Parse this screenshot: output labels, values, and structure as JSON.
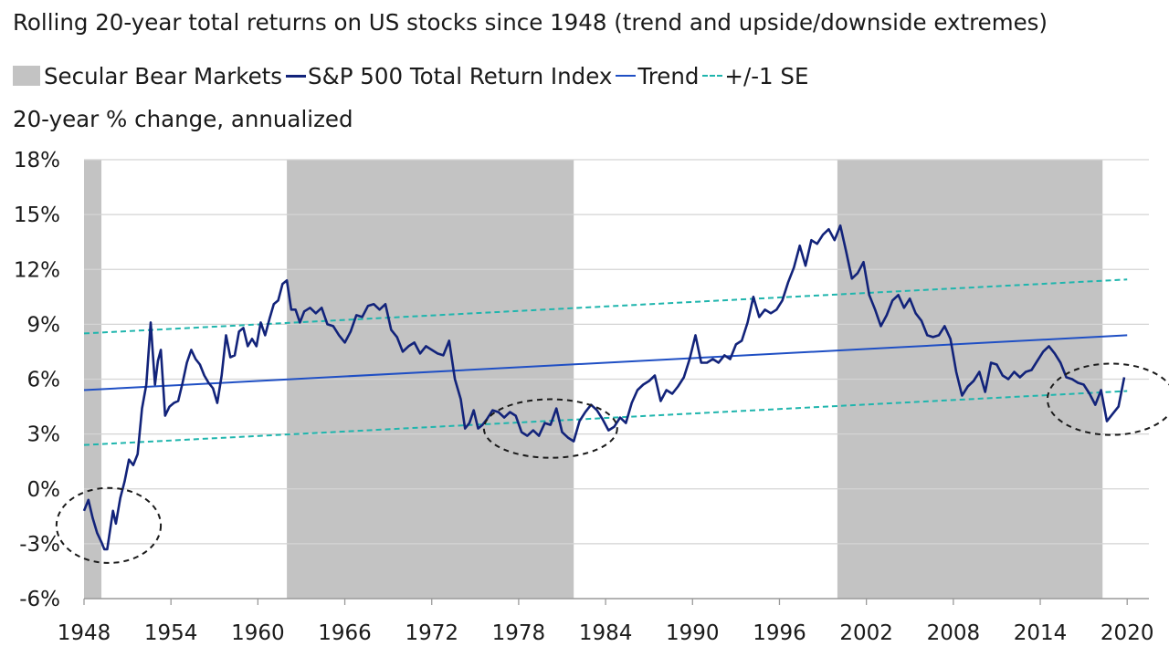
{
  "chart_data": {
    "type": "line",
    "title": "Rolling 20-year total returns on US stocks since 1948 (trend and upside/downside extremes)",
    "ylabel": "20-year % change, annualized",
    "xlabel": "",
    "xlim": [
      1948,
      2021.5
    ],
    "ylim": [
      -6,
      18
    ],
    "x_ticks": [
      "1948",
      "1954",
      "1960",
      "1966",
      "1972",
      "1978",
      "1984",
      "1990",
      "1996",
      "2002",
      "2008",
      "2014",
      "2020"
    ],
    "x_tick_values": [
      1948,
      1954,
      1960,
      1966,
      1972,
      1978,
      1984,
      1990,
      1996,
      2002,
      2008,
      2014,
      2020
    ],
    "y_ticks": [
      "18%",
      "15%",
      "12%",
      "9%",
      "6%",
      "3%",
      "0%",
      "-3%",
      "-6%"
    ],
    "y_tick_values": [
      18,
      15,
      12,
      9,
      6,
      3,
      0,
      -3,
      -6
    ],
    "grid": "horizontal",
    "legend_position": "top",
    "legend": {
      "bear": "Secular Bear Markets",
      "sp": "S&P 500 Total Return Index",
      "trend": "Trend",
      "se": "+/-1 SE"
    },
    "bear_markets": [
      [
        1948,
        1949.2
      ],
      [
        1962,
        1981.8
      ],
      [
        2000,
        2018.3
      ]
    ],
    "trend": {
      "x": [
        1948,
        2020
      ],
      "y": [
        5.4,
        8.4
      ]
    },
    "upper_se": {
      "x": [
        1948,
        2020
      ],
      "y": [
        8.5,
        11.45
      ]
    },
    "lower_se": {
      "x": [
        1948,
        2020
      ],
      "y": [
        2.4,
        5.35
      ]
    },
    "sp500": {
      "x": [
        1948.0,
        1948.3,
        1948.6,
        1948.9,
        1949.2,
        1949.4,
        1949.6,
        1950.0,
        1950.2,
        1950.5,
        1950.8,
        1951.1,
        1951.4,
        1951.7,
        1952.0,
        1952.3,
        1952.6,
        1952.9,
        1953.1,
        1953.3,
        1953.6,
        1953.9,
        1954.2,
        1954.5,
        1954.8,
        1955.1,
        1955.4,
        1955.7,
        1956.0,
        1956.3,
        1956.6,
        1956.9,
        1957.2,
        1957.5,
        1957.8,
        1958.1,
        1958.4,
        1958.7,
        1959.0,
        1959.3,
        1959.6,
        1959.9,
        1960.2,
        1960.5,
        1960.8,
        1961.1,
        1961.4,
        1961.7,
        1962.0,
        1962.3,
        1962.6,
        1962.9,
        1963.2,
        1963.6,
        1964.0,
        1964.4,
        1964.8,
        1965.2,
        1965.6,
        1966.0,
        1966.4,
        1966.8,
        1967.2,
        1967.6,
        1968.0,
        1968.4,
        1968.8,
        1969.2,
        1969.6,
        1970.0,
        1970.4,
        1970.8,
        1971.2,
        1971.6,
        1972.0,
        1972.4,
        1972.8,
        1973.2,
        1973.6,
        1974.0,
        1974.3,
        1974.6,
        1974.9,
        1975.2,
        1975.5,
        1975.8,
        1976.2,
        1976.6,
        1977.0,
        1977.4,
        1977.8,
        1978.2,
        1978.6,
        1979.0,
        1979.4,
        1979.8,
        1980.2,
        1980.6,
        1981.0,
        1981.4,
        1981.8,
        1982.2,
        1982.6,
        1983.0,
        1983.4,
        1983.8,
        1984.2,
        1984.6,
        1985.0,
        1985.4,
        1985.8,
        1986.2,
        1986.6,
        1987.0,
        1987.4,
        1987.8,
        1988.2,
        1988.6,
        1989.0,
        1989.4,
        1989.8,
        1990.2,
        1990.6,
        1991.0,
        1991.4,
        1991.8,
        1992.2,
        1992.6,
        1993.0,
        1993.4,
        1993.8,
        1994.2,
        1994.6,
        1995.0,
        1995.4,
        1995.8,
        1996.2,
        1996.6,
        1997.0,
        1997.4,
        1997.8,
        1998.2,
        1998.6,
        1999.0,
        1999.4,
        1999.8,
        2000.2,
        2000.6,
        2001.0,
        2001.4,
        2001.8,
        2002.2,
        2002.6,
        2003.0,
        2003.4,
        2003.8,
        2004.2,
        2004.6,
        2005.0,
        2005.4,
        2005.8,
        2006.2,
        2006.6,
        2007.0,
        2007.4,
        2007.8,
        2008.2,
        2008.6,
        2009.0,
        2009.4,
        2009.8,
        2010.2,
        2010.6,
        2011.0,
        2011.4,
        2011.8,
        2012.2,
        2012.6,
        2013.0,
        2013.4,
        2013.8,
        2014.2,
        2014.6,
        2015.0,
        2015.4,
        2015.8,
        2016.2,
        2016.6,
        2017.0,
        2017.4,
        2017.8,
        2018.2,
        2018.6,
        2019.0,
        2019.4,
        2019.8
      ],
      "y": [
        -1.2,
        -0.6,
        -1.6,
        -2.4,
        -2.9,
        -3.3,
        -3.3,
        -1.2,
        -1.9,
        -0.5,
        0.4,
        1.6,
        1.3,
        1.9,
        4.4,
        5.7,
        9.1,
        5.7,
        7.0,
        7.6,
        4.0,
        4.5,
        4.7,
        4.8,
        5.8,
        6.9,
        7.6,
        7.1,
        6.8,
        6.2,
        5.8,
        5.5,
        4.7,
        6.2,
        8.4,
        7.2,
        7.3,
        8.6,
        8.8,
        7.8,
        8.2,
        7.8,
        9.1,
        8.4,
        9.3,
        10.1,
        10.3,
        11.2,
        11.4,
        9.8,
        9.8,
        9.1,
        9.7,
        9.9,
        9.6,
        9.9,
        9.0,
        8.9,
        8.4,
        8.0,
        8.6,
        9.5,
        9.4,
        10.0,
        10.1,
        9.8,
        10.1,
        8.7,
        8.3,
        7.5,
        7.8,
        8.0,
        7.4,
        7.8,
        7.6,
        7.4,
        7.3,
        8.1,
        6.0,
        4.9,
        3.3,
        3.6,
        4.3,
        3.3,
        3.5,
        3.8,
        4.3,
        4.2,
        3.9,
        4.2,
        4.0,
        3.1,
        2.9,
        3.2,
        2.9,
        3.6,
        3.5,
        4.4,
        3.1,
        2.8,
        2.6,
        3.7,
        4.2,
        4.6,
        4.3,
        3.8,
        3.2,
        3.4,
        3.9,
        3.6,
        4.7,
        5.4,
        5.7,
        5.9,
        6.2,
        4.8,
        5.4,
        5.2,
        5.6,
        6.1,
        7.1,
        8.4,
        6.9,
        6.9,
        7.1,
        6.9,
        7.3,
        7.1,
        7.9,
        8.1,
        9.1,
        10.5,
        9.4,
        9.8,
        9.6,
        9.8,
        10.3,
        11.3,
        12.1,
        13.3,
        12.2,
        13.6,
        13.4,
        13.9,
        14.2,
        13.6,
        14.4,
        13.0,
        11.5,
        11.8,
        12.4,
        10.6,
        9.8,
        8.9,
        9.5,
        10.3,
        10.6,
        9.9,
        10.4,
        9.6,
        9.2,
        8.4,
        8.3,
        8.4,
        8.9,
        8.2,
        6.4,
        5.1,
        5.6,
        5.9,
        6.4,
        5.3,
        6.9,
        6.8,
        6.2,
        6.0,
        6.4,
        6.1,
        6.4,
        6.5,
        7.0,
        7.5,
        7.8,
        7.4,
        6.9,
        6.1,
        6.0,
        5.8,
        5.7,
        5.2,
        4.6,
        5.4,
        3.7,
        4.1,
        4.5,
        6.1
      ]
    },
    "circles": [
      {
        "cx": 1949.7,
        "cy": -2.0,
        "rx_years": 3.6,
        "ry_pct": 2.05
      },
      {
        "cx": 1980.2,
        "cy": 3.3,
        "rx_years": 4.6,
        "ry_pct": 1.6
      },
      {
        "cx": 2018.9,
        "cy": 4.9,
        "rx_years": 4.4,
        "ry_pct": 1.95
      }
    ],
    "colors": {
      "bear": "#c3c3c3",
      "sp": "#12237a",
      "trend": "#1f4fc4",
      "se": "#1fb5ad",
      "grid": "#d4d4d4",
      "circle": "#1a1a1a"
    }
  }
}
